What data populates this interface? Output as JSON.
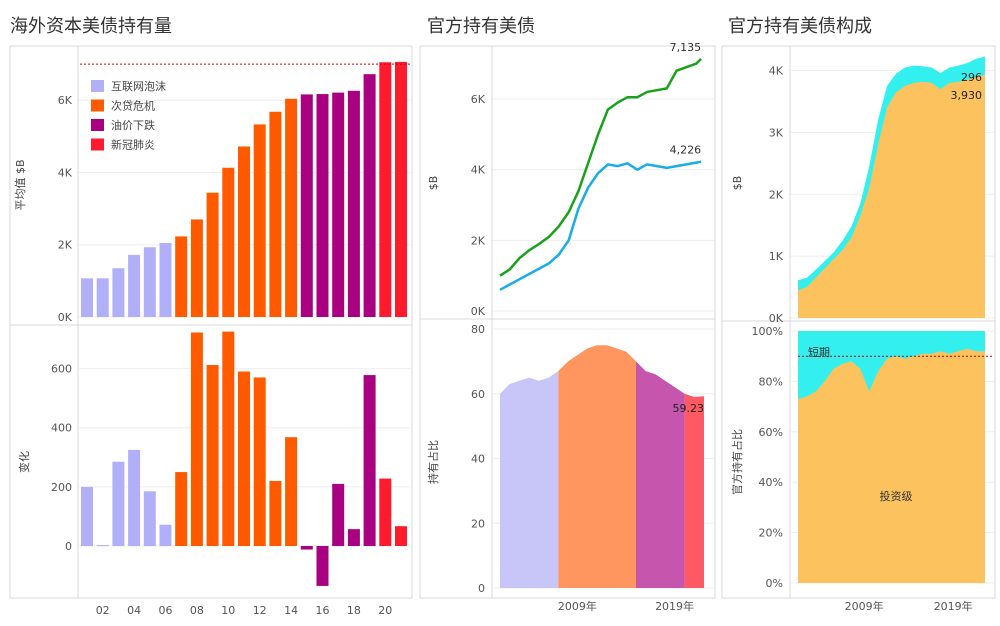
{
  "titles": [
    "海外资本美债持有量",
    "官方持有美债",
    "官方持有美债构成"
  ],
  "colors": {
    "internet": "#b1b0f6",
    "subprime": "#ff5a00",
    "oil": "#a80080",
    "covid": "#ff1a2e",
    "green_line": "#17a21a",
    "blue_line": "#1aabe9",
    "cyan": "#33f0ee",
    "orange": "#fcc25e"
  },
  "chart_data": [
    {
      "type": "bar",
      "title": "海外资本美债持有量",
      "ylabel": "平均值 $B",
      "ylim": [
        0,
        7500
      ],
      "yticks": [
        0,
        2000,
        4000,
        6000
      ],
      "ytick_labels": [
        "0K",
        "2K",
        "4K",
        "6K"
      ],
      "reference_line": 7000,
      "x": [
        2001,
        2002,
        2003,
        2004,
        2005,
        2006,
        2007,
        2008,
        2009,
        2010,
        2011,
        2012,
        2013,
        2014,
        2015,
        2016,
        2017,
        2018,
        2019,
        2020,
        2021
      ],
      "values": [
        1070,
        1070,
        1350,
        1720,
        1930,
        2050,
        2230,
        2700,
        3440,
        4130,
        4720,
        5330,
        5680,
        6040,
        6160,
        6170,
        6210,
        6260,
        6720,
        7050,
        7060
      ],
      "period": [
        0,
        0,
        0,
        0,
        0,
        0,
        1,
        1,
        1,
        1,
        1,
        1,
        1,
        1,
        2,
        2,
        2,
        2,
        2,
        3,
        3
      ],
      "legend": [
        "互联网泡沫",
        "次贷危机",
        "油价下跌",
        "新冠肺炎"
      ]
    },
    {
      "type": "bar",
      "ylabel": "变化",
      "ylim": [
        -170,
        720
      ],
      "yticks": [
        0,
        200,
        400,
        600
      ],
      "ytick_labels": [
        "0",
        "200",
        "400",
        "600"
      ],
      "x": [
        2001,
        2002,
        2003,
        2004,
        2005,
        2006,
        2007,
        2008,
        2009,
        2010,
        2011,
        2012,
        2013,
        2014,
        2015,
        2016,
        2017,
        2018,
        2019,
        2020,
        2021
      ],
      "values": [
        200,
        3,
        285,
        325,
        185,
        72,
        250,
        722,
        612,
        725,
        590,
        570,
        220,
        368,
        -12,
        -135,
        210,
        57,
        578,
        228,
        67
      ],
      "period": [
        0,
        0,
        0,
        0,
        0,
        0,
        1,
        1,
        1,
        1,
        1,
        1,
        1,
        1,
        2,
        2,
        2,
        2,
        2,
        3,
        3
      ],
      "xtick_labels": [
        "02",
        "04",
        "06",
        "08",
        "10",
        "12",
        "14",
        "16",
        "18",
        "20"
      ]
    },
    {
      "type": "line",
      "title": "官方持有美债",
      "ylabel": "$B",
      "ylim": [
        0,
        7500
      ],
      "yticks": [
        0,
        2000,
        4000,
        6000
      ],
      "ytick_labels": [
        "0K",
        "2K",
        "4K",
        "6K"
      ],
      "x": [
        2000.0,
        2001.0,
        2002.0,
        2003.0,
        2004.0,
        2005.0,
        2006.0,
        2007.0,
        2008.0,
        2009.0,
        2010.0,
        2011.0,
        2012.0,
        2013.0,
        2014.0,
        2015.0,
        2016.0,
        2017.0,
        2018.0,
        2019.0,
        2020.0,
        2020.5
      ],
      "series": [
        {
          "values": [
            1000,
            1180,
            1500,
            1720,
            1900,
            2100,
            2400,
            2800,
            3400,
            4200,
            5000,
            5700,
            5900,
            6050,
            6050,
            6200,
            6250,
            6300,
            6800,
            6900,
            7000,
            7135
          ],
          "end_label": "7,135"
        },
        {
          "values": [
            600,
            750,
            900,
            1050,
            1200,
            1350,
            1600,
            2000,
            2900,
            3500,
            3900,
            4150,
            4100,
            4180,
            4000,
            4150,
            4100,
            4050,
            4100,
            4150,
            4200,
            4226
          ],
          "end_label": "4,226"
        }
      ]
    },
    {
      "type": "area",
      "ylabel": "持有占比",
      "ylim": [
        0,
        80
      ],
      "yticks": [
        0,
        20,
        40,
        60,
        80
      ],
      "ytick_labels": [
        "0",
        "20",
        "40",
        "60",
        "80"
      ],
      "xtick_labels": [
        "2009年",
        "2019年"
      ],
      "x": [
        2000.0,
        2001.0,
        2002.0,
        2003.0,
        2004.0,
        2005.0,
        2006.0,
        2007.0,
        2008.0,
        2009.0,
        2010.0,
        2011.0,
        2012.0,
        2013.0,
        2014.0,
        2015.0,
        2016.0,
        2017.0,
        2018.0,
        2019.0,
        2020.0,
        2021.0
      ],
      "values": [
        60,
        63,
        64,
        65,
        64,
        65,
        67,
        70,
        72,
        74,
        75,
        75,
        74,
        73,
        70,
        67,
        66,
        64,
        62,
        60,
        59,
        59.23
      ],
      "period": [
        0,
        0,
        0,
        0,
        0,
        0,
        1,
        1,
        1,
        1,
        1,
        1,
        1,
        1,
        2,
        2,
        2,
        2,
        2,
        3,
        3,
        3
      ],
      "end_label": "59.23"
    },
    {
      "type": "area",
      "title": "官方持有美债构成",
      "ylabel": "$B",
      "ylim": [
        0,
        4300
      ],
      "yticks": [
        0,
        1000,
        2000,
        3000,
        4000
      ],
      "ytick_labels": [
        "0K",
        "1K",
        "2K",
        "3K",
        "4K"
      ],
      "x": [
        2000.0,
        2001.0,
        2002.0,
        2003.0,
        2004.0,
        2005.0,
        2006.0,
        2007.0,
        2008.0,
        2009.0,
        2010.0,
        2011.0,
        2012.0,
        2013.0,
        2014.0,
        2015.0,
        2016.0,
        2017.0,
        2018.0,
        2019.0,
        2020.0,
        2021.0
      ],
      "series": [
        {
          "values": [
            450,
            500,
            650,
            800,
            950,
            1100,
            1300,
            1650,
            2100,
            2800,
            3400,
            3650,
            3750,
            3800,
            3820,
            3800,
            3700,
            3800,
            3820,
            3850,
            3900,
            3930
          ],
          "end_label": "3,930"
        },
        {
          "values": [
            160,
            150,
            130,
            120,
            110,
            150,
            180,
            200,
            350,
            400,
            350,
            300,
            300,
            280,
            250,
            250,
            260,
            250,
            260,
            270,
            290,
            296
          ],
          "end_label": "296"
        }
      ]
    },
    {
      "type": "area",
      "ylabel": "官方持有占比",
      "ylim": [
        0,
        100
      ],
      "yticks": [
        0,
        20,
        40,
        60,
        80,
        100
      ],
      "ytick_labels": [
        "0%",
        "20%",
        "40%",
        "60%",
        "80%",
        "100%"
      ],
      "reference_line": 90,
      "xtick_labels": [
        "2009年",
        "2019年"
      ],
      "x": [
        2000.0,
        2001.0,
        2002.0,
        2003.0,
        2004.0,
        2005.0,
        2006.0,
        2007.0,
        2008.0,
        2009.0,
        2010.0,
        2011.0,
        2012.0,
        2013.0,
        2014.0,
        2015.0,
        2016.0,
        2017.0,
        2018.0,
        2019.0,
        2020.0,
        2021.0
      ],
      "values": [
        73,
        74,
        76,
        80,
        85,
        87,
        88,
        85,
        76,
        84,
        89,
        90,
        89,
        90,
        91,
        91,
        92,
        91,
        92,
        93,
        92,
        92
      ],
      "labels": [
        "短期",
        "投资级"
      ]
    }
  ]
}
